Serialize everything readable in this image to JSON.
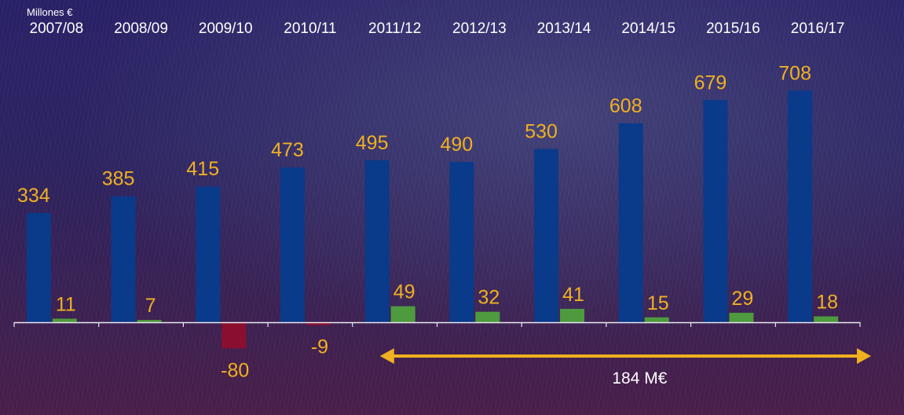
{
  "chart_data": {
    "type": "bar",
    "unit_label": "Millones  €",
    "categories": [
      "2007/08",
      "2008/09",
      "2009/10",
      "2010/11",
      "2011/12",
      "2012/13",
      "2013/14",
      "2014/15",
      "2015/16",
      "2016/17"
    ],
    "series": [
      {
        "values": [
          334,
          385,
          415,
          473,
          495,
          490,
          530,
          608,
          679,
          708
        ],
        "color": "#0a3a8a"
      },
      {
        "values": [
          11,
          7,
          -80,
          -9,
          49,
          32,
          41,
          15,
          29,
          18
        ],
        "color": "#4e9a3e",
        "negative_color": "#8a0f2e"
      }
    ],
    "value_label_color": "#f0b020",
    "annotation": {
      "text": "184 M€",
      "from": "2011/12",
      "to": "2016/17",
      "color": "#f0b020"
    },
    "ylim": [
      -80,
      708
    ],
    "grid": false,
    "legend": "none"
  }
}
